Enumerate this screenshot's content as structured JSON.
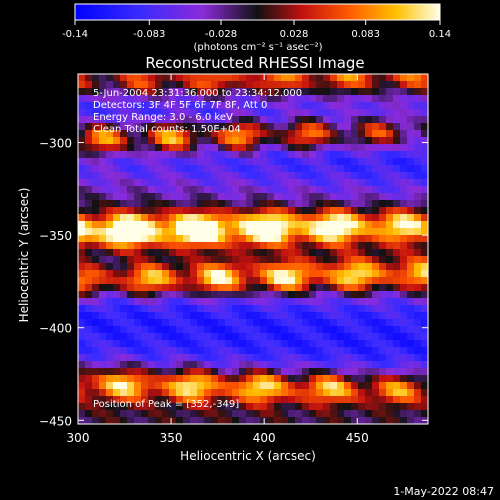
{
  "chart_data": {
    "type": "heatmap",
    "title": "Reconstructed RHESSI Image",
    "xlabel": "Heliocentric X (arcsec)",
    "ylabel": "Heliocentric Y (arcsec)",
    "xlim": [
      300,
      488
    ],
    "ylim": [
      -452,
      -263
    ],
    "x_ticks": [
      300,
      350,
      400,
      450
    ],
    "y_ticks": [
      -300,
      -350,
      -400,
      -450
    ],
    "colorbar": {
      "ticks": [
        "-0.14",
        "-0.083",
        "-0.028",
        "0.028",
        "0.083",
        "0.14"
      ],
      "range": [
        -0.14,
        0.14
      ],
      "label": "(photons cm⁻² s⁻¹ asec⁻²)"
    },
    "annotations": [
      "5-Jun-2004 23:31:36.000 to 23:34:12.000",
      "Detectors: 3F 4F 5F 6F 7F 8F, Att 0",
      "Energy Range: 3.0 - 6.0 keV",
      "Clean    Total counts: 1.50E+04"
    ],
    "peak_label": "Position of Peak = [352,-349]",
    "peak": [
      352,
      -349
    ],
    "bands": [
      {
        "y": -298,
        "peak": 0.12,
        "x_center": 355
      },
      {
        "y": -348,
        "peak": 0.14,
        "x_center": 352
      },
      {
        "y": -375,
        "peak": 0.1,
        "x_center": 390
      },
      {
        "y": -430,
        "peak": 0.09,
        "x_center": 380
      },
      {
        "y": -268,
        "peak": 0.03,
        "x_center": 390
      }
    ],
    "grid": false
  },
  "footer_date": "1-May-2022 08:47"
}
